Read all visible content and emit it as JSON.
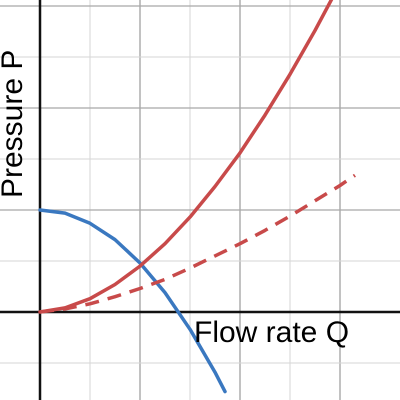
{
  "chart_data": {
    "type": "line",
    "title": "",
    "xlabel": "Flow rate Q",
    "ylabel": "Pressure P",
    "xlim": [
      -0.6,
      3.15
    ],
    "ylim": [
      -0.85,
      3.1
    ],
    "grid": true,
    "legend": "none",
    "series": [
      {
        "color": "#3a78c0",
        "style": "solid",
        "x": [
          0,
          0.25,
          0.5,
          0.75,
          1.0,
          1.25,
          1.5,
          1.75,
          1.85
        ],
        "y": [
          1.0,
          0.97,
          0.87,
          0.71,
          0.48,
          0.19,
          -0.17,
          -0.59,
          -0.78
        ]
      },
      {
        "color": "#c84a4a",
        "style": "solid",
        "x": [
          0,
          0.25,
          0.5,
          0.75,
          1.0,
          1.25,
          1.5,
          1.75,
          2.0,
          2.25,
          2.5,
          2.75,
          3.0
        ],
        "y": [
          0,
          0.04,
          0.13,
          0.27,
          0.45,
          0.67,
          0.93,
          1.23,
          1.56,
          1.93,
          2.33,
          2.76,
          3.22
        ]
      },
      {
        "color": "#c84a4a",
        "style": "dashed",
        "x": [
          0,
          0.25,
          0.5,
          0.75,
          1.0,
          1.25,
          1.5,
          1.75,
          2.0,
          2.25,
          2.5,
          2.75,
          3.0,
          3.15
        ],
        "y": [
          0,
          0.03,
          0.08,
          0.15,
          0.23,
          0.32,
          0.43,
          0.55,
          0.67,
          0.8,
          0.94,
          1.09,
          1.24,
          1.34
        ]
      }
    ]
  },
  "colors": {
    "grid": "#d6d6d6",
    "axis": "#111111"
  }
}
